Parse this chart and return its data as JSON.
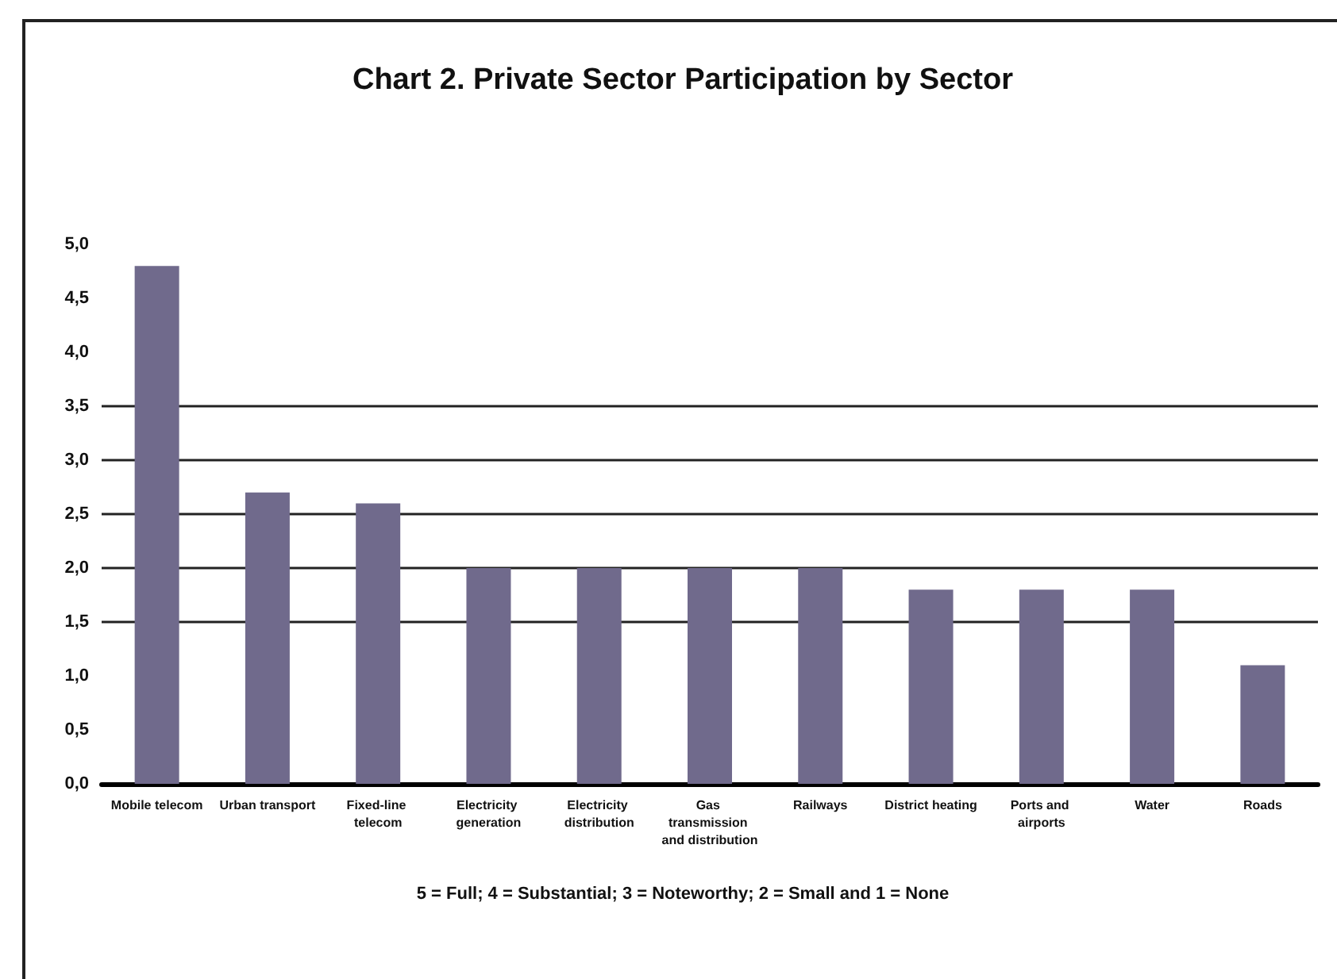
{
  "chart_data": {
    "type": "bar",
    "title": "Chart 2. Private Sector Participation by Sector",
    "categories": [
      "Mobile telecom",
      "Urban transport",
      "Fixed-line telecom",
      "Electricity generation",
      "Electricity distribution",
      "Gas transmission and distribution",
      "Railways",
      "District heating",
      "Ports and airports",
      "Water",
      "Roads"
    ],
    "values": [
      4.8,
      2.7,
      2.6,
      2.0,
      2.0,
      2.0,
      2.0,
      1.8,
      1.8,
      1.8,
      1.1
    ],
    "color": "#706a8c",
    "ylim": [
      0,
      5
    ],
    "yticks": [
      {
        "value": 0,
        "label": "0,0"
      },
      {
        "value": 0.5,
        "label": "0,5"
      },
      {
        "value": 1,
        "label": "1,0"
      },
      {
        "value": 1.5,
        "label": "1,5"
      },
      {
        "value": 2,
        "label": "2,0"
      },
      {
        "value": 2.5,
        "label": "2,5"
      },
      {
        "value": 3,
        "label": "3,0"
      },
      {
        "value": 3.5,
        "label": "3,5"
      },
      {
        "value": 4,
        "label": "4,0"
      },
      {
        "value": 4.5,
        "label": "4,5"
      },
      {
        "value": 5,
        "label": "5,0"
      }
    ],
    "ref_lines": [
      {
        "axis": "y",
        "value": 1.5,
        "color": "#222222"
      },
      {
        "axis": "y",
        "value": 2,
        "color": "#222222"
      },
      {
        "axis": "y",
        "value": 2.5,
        "color": "#222222"
      },
      {
        "axis": "y",
        "value": 3,
        "color": "#222222"
      },
      {
        "axis": "y",
        "value": 3.5,
        "color": "#222222"
      }
    ],
    "annotations": [
      "5 = Full; 4 = Substantial; 3 = Noteworthy; 2 = Small and 1 = None"
    ],
    "grid": false
  }
}
